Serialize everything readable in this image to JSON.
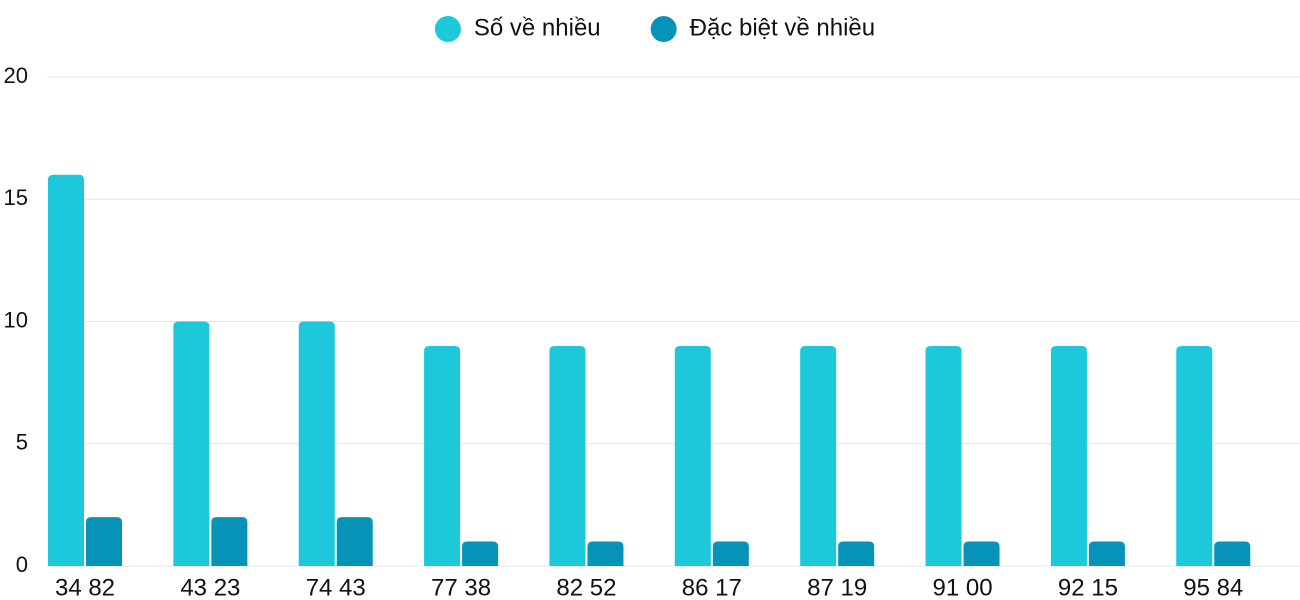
{
  "chart_data": {
    "type": "bar",
    "categories": [
      "34 82",
      "43 23",
      "74 43",
      "77 38",
      "82 52",
      "86 17",
      "87 19",
      "91 00",
      "92 15",
      "95 84"
    ],
    "series": [
      {
        "name": "Số về nhiều",
        "color": "#1cc8da",
        "values": [
          16,
          10,
          10,
          9,
          9,
          9,
          9,
          9,
          9,
          9
        ]
      },
      {
        "name": "Đặc biệt về nhiều",
        "color": "#0693b7",
        "values": [
          2,
          2,
          2,
          1,
          1,
          1,
          1,
          1,
          1,
          1
        ]
      }
    ],
    "ylim": [
      0,
      20
    ],
    "yticks": [
      0,
      5,
      10,
      15,
      20
    ],
    "grid": true,
    "legend": "top"
  }
}
